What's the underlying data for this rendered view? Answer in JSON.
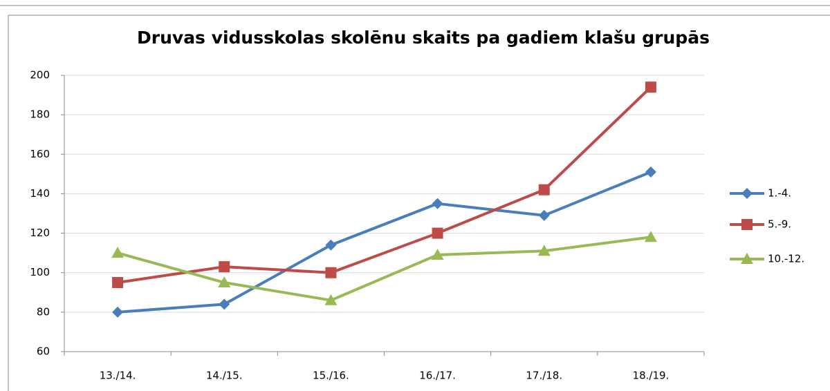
{
  "chart_data": {
    "type": "line",
    "title": "Druvas vidusskolas skolēnu skaits pa gadiem klašu grupās",
    "categories": [
      "13./14.",
      "14./15.",
      "15./16.",
      "16./17.",
      "17./18.",
      "18./19."
    ],
    "series": [
      {
        "name": "1.-4.",
        "color": "#4a7ebb",
        "marker": "diamond",
        "values": [
          80,
          84,
          114,
          135,
          129,
          151
        ]
      },
      {
        "name": "5.-9.",
        "color": "#be4b48",
        "marker": "square",
        "values": [
          95,
          103,
          100,
          120,
          142,
          194
        ]
      },
      {
        "name": "10.-12.",
        "color": "#98b954",
        "marker": "triangle",
        "values": [
          110,
          95,
          86,
          109,
          111,
          118
        ]
      }
    ],
    "ylim": [
      60,
      200
    ],
    "yticks": [
      60,
      80,
      100,
      120,
      140,
      160,
      180,
      200
    ],
    "grid": true,
    "legend": "right"
  }
}
